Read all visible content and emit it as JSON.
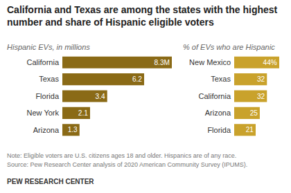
{
  "title": "California and Texas are among the states with the highest number and share of Hispanic eligible voters",
  "note": "Note: Eligible voters are U.S. citizens ages 18 and older. Hispanics are of any race.",
  "source": "Source: Pew Research Center analysis of 2020 American Community Survey (IPUMS).",
  "footer": "PEW RESEARCH CENTER",
  "chart_data": [
    {
      "type": "bar",
      "orientation": "horizontal",
      "title": "Hispanic EVs, in millions",
      "categories": [
        "California",
        "Texas",
        "Florida",
        "New York",
        "Arizona"
      ],
      "values": [
        8.3,
        6.2,
        3.4,
        2.1,
        1.3
      ],
      "value_labels": [
        "8.3M",
        "6.2",
        "3.4",
        "2.1",
        "1.3"
      ],
      "data_labels": true,
      "color": "#8a6a16",
      "xlim": [
        0,
        8.3
      ],
      "grid": false,
      "tick_labels": "y"
    },
    {
      "type": "bar",
      "orientation": "horizontal",
      "title": "% of EVs who are Hispanic",
      "categories": [
        "New Mexico",
        "Texas",
        "California",
        "Arizona",
        "Florida"
      ],
      "values": [
        44,
        32,
        32,
        25,
        21
      ],
      "value_labels": [
        "44%",
        "32",
        "32",
        "25",
        "21"
      ],
      "data_labels": true,
      "color": "#c9a22c",
      "xlim": [
        0,
        44
      ],
      "grid": false,
      "tick_labels": "y"
    }
  ]
}
